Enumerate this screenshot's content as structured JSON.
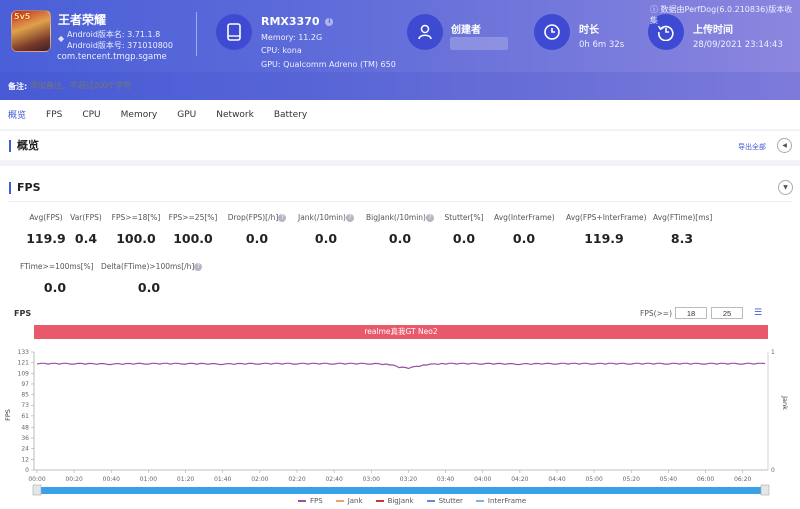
{
  "header": {
    "app": {
      "name": "王者荣耀",
      "icon_badge": "5v5",
      "android_version_name": "Android版本名: 3.71.1.8",
      "android_version_code": "Android版本号: 371010800",
      "package": "com.tencent.tmgp.sgame"
    },
    "device": {
      "model": "RMX3370",
      "memory": "Memory: 11.2G",
      "cpu": "CPU: kona",
      "gpu": "GPU: Qualcomm Adreno (TM) 650"
    },
    "creator": {
      "title": "创建者",
      "value": ""
    },
    "duration": {
      "title": "时长",
      "value": "0h 6m 32s"
    },
    "upload_time": {
      "title": "上传时间",
      "value": "28/09/2021 23:14:43"
    },
    "perfdog_note": "数据由PerfDog(6.0.210836)版本收集",
    "note": {
      "label": "备注:",
      "placeholder": "添加备注，不超过200个字符"
    },
    "colors": {
      "gradient_start": "#4a5fd8",
      "gradient_end": "#8c86df",
      "icon_circle": "#3d4ad1"
    }
  },
  "tabs": [
    {
      "label": "概览",
      "active": true
    },
    {
      "label": "FPS"
    },
    {
      "label": "CPU"
    },
    {
      "label": "Memory"
    },
    {
      "label": "GPU"
    },
    {
      "label": "Network"
    },
    {
      "label": "Battery"
    }
  ],
  "overview": {
    "title": "概览",
    "export_label": "导出全部"
  },
  "fps_section": {
    "title": "FPS",
    "metrics_row1": [
      {
        "label": "Avg(FPS)",
        "value": "119.9",
        "help": false
      },
      {
        "label": "Var(FPS)",
        "value": "0.4",
        "help": false
      },
      {
        "label": "FPS>=18[%]",
        "value": "100.0",
        "help": false
      },
      {
        "label": "FPS>=25[%]",
        "value": "100.0",
        "help": false
      },
      {
        "label": "Drop(FPS)[/h]",
        "value": "0.0",
        "help": true
      },
      {
        "label": "Jank(/10min)",
        "value": "0.0",
        "help": true
      },
      {
        "label": "BigJank(/10min)",
        "value": "0.0",
        "help": true
      },
      {
        "label": "Stutter[%]",
        "value": "0.0",
        "help": false
      },
      {
        "label": "Avg(InterFrame)",
        "value": "0.0",
        "help": false
      },
      {
        "label": "Avg(FPS+InterFrame)",
        "value": "119.9",
        "help": false
      },
      {
        "label": "Avg(FTime)[ms]",
        "value": "8.3",
        "help": false
      }
    ],
    "metrics_row2": [
      {
        "label": "FTime>=100ms[%]",
        "value": "0.0",
        "help": false
      },
      {
        "label": "Delta(FTime)>100ms[/h]",
        "value": "0.0",
        "help": true
      }
    ],
    "chart_header": {
      "title": "FPS",
      "filter_label": "FPS(>=)",
      "threshold_1": "18",
      "threshold_2": "25"
    },
    "device_bar_label": "realme真我GT Neo2",
    "device_bar_color": "#e8596b"
  },
  "chart_data": {
    "type": "line",
    "title": "FPS",
    "xlabel": "",
    "ylabel": "FPS",
    "y2label": "Jank",
    "ylim": [
      0,
      133
    ],
    "y2lim": [
      0,
      1
    ],
    "y_ticks": [
      0,
      12,
      24,
      36,
      48,
      61,
      73,
      85,
      97,
      109,
      121,
      133
    ],
    "y2_ticks": [
      0,
      1
    ],
    "x_ticks": [
      "00:00",
      "00:20",
      "00:40",
      "01:00",
      "01:20",
      "01:40",
      "02:00",
      "02:20",
      "02:40",
      "03:00",
      "03:20",
      "03:40",
      "04:00",
      "04:20",
      "04:40",
      "05:00",
      "05:20",
      "05:40",
      "06:00",
      "06:20"
    ],
    "grid": false,
    "legend_position": "bottom",
    "series": [
      {
        "name": "FPS",
        "color": "#9b4fa8",
        "description": "steady around 120 FPS with a brief dip to ~115 near 03:20",
        "x": [
          "00:00",
          "00:20",
          "00:40",
          "01:00",
          "01:20",
          "01:40",
          "02:00",
          "02:20",
          "02:40",
          "03:00",
          "03:10",
          "03:15",
          "03:20",
          "03:30",
          "03:40",
          "04:00",
          "04:20",
          "04:40",
          "05:00",
          "05:20",
          "05:40",
          "06:00",
          "06:20",
          "06:32"
        ],
        "values": [
          120,
          120,
          119.5,
          120,
          120,
          119.5,
          120,
          120,
          120,
          120,
          119,
          116,
          115,
          119,
          120,
          120,
          119.5,
          120,
          120,
          120,
          120,
          120,
          120,
          120
        ]
      },
      {
        "name": "Jank",
        "color": "#f0a060",
        "values": []
      },
      {
        "name": "BigJank",
        "color": "#c0393b",
        "values": []
      },
      {
        "name": "Stutter",
        "color": "#5b8fd6",
        "values": []
      },
      {
        "name": "InterFrame",
        "color": "#7ab8e0",
        "values": []
      }
    ]
  },
  "legend": [
    {
      "name": "FPS",
      "color": "#9b4fa8"
    },
    {
      "name": "Jank",
      "color": "#f0a060"
    },
    {
      "name": "BigJank",
      "color": "#c0393b"
    },
    {
      "name": "Stutter",
      "color": "#5b8fd6"
    },
    {
      "name": "InterFrame",
      "color": "#7ab8e0"
    }
  ]
}
